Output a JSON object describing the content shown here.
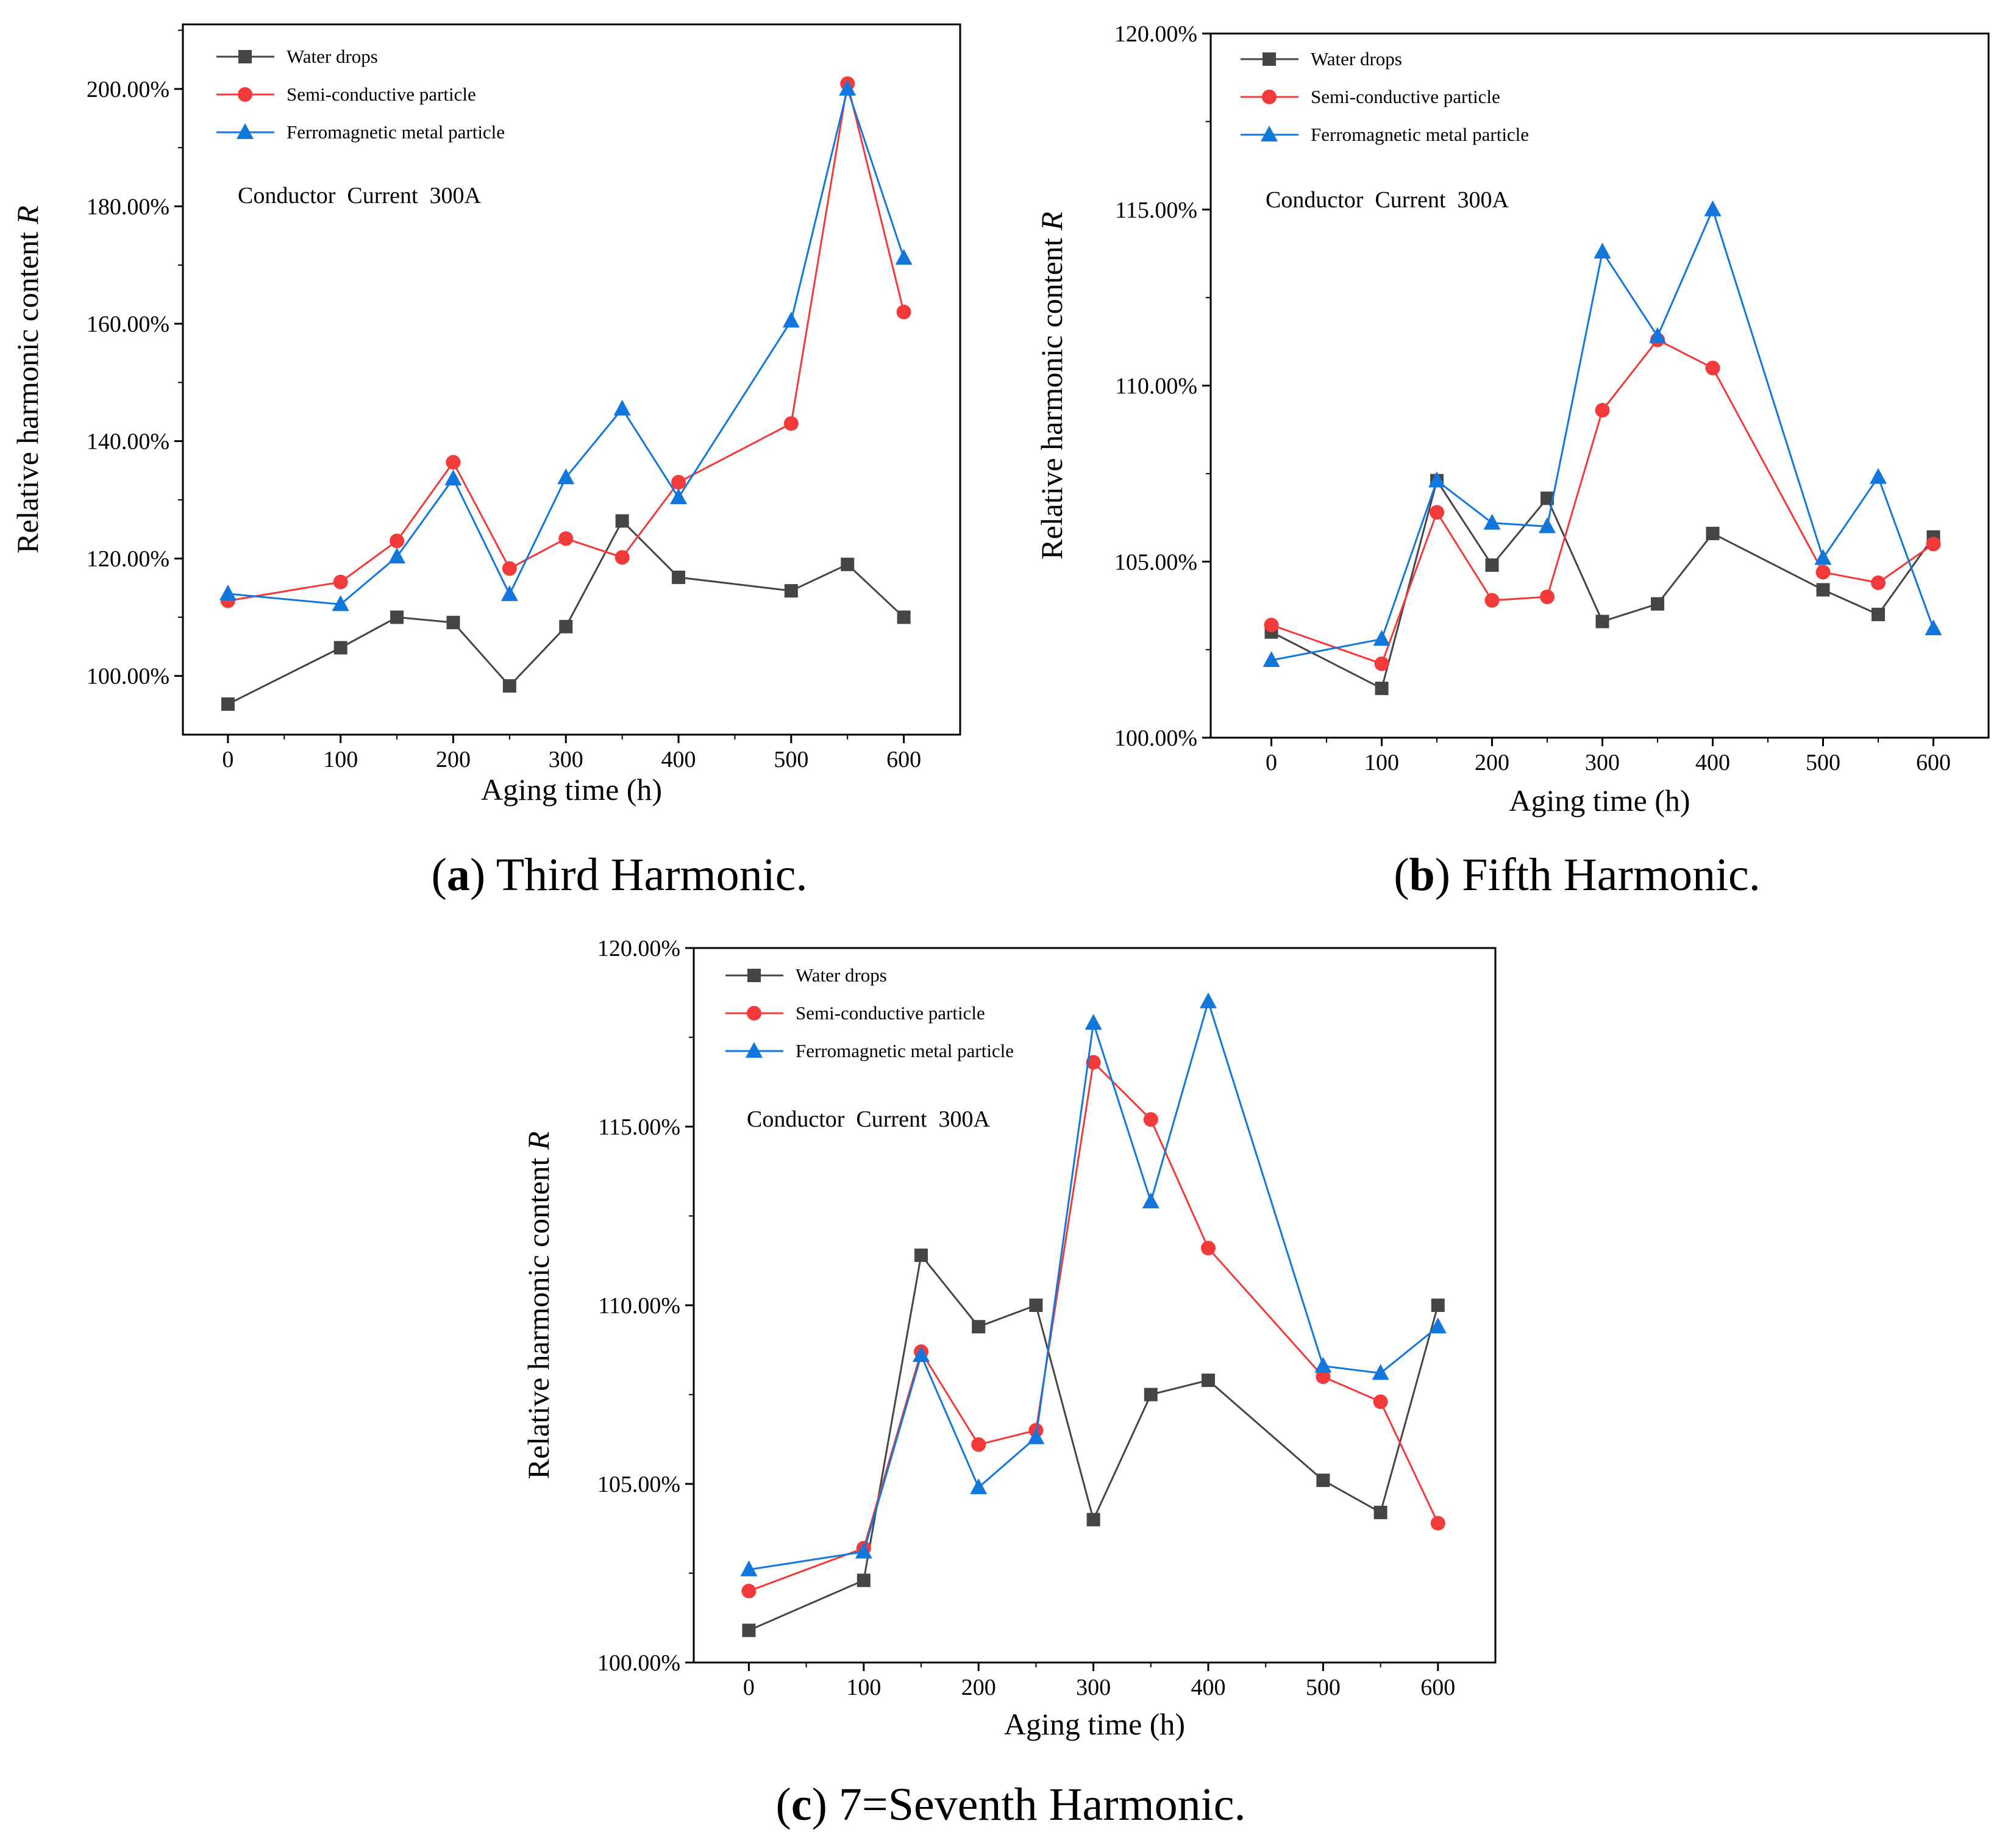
{
  "chart_data": [
    {
      "type": "line",
      "id": "a",
      "caption": {
        "paren_open": "(",
        "letter": "a",
        "paren_close": ")",
        "text": " Third Harmonic."
      },
      "annotation": "Conductor  Current  300A",
      "xlabel": "Aging time (h)",
      "ylabel": "Relative harmonic content ",
      "ylabel_var": "R",
      "xlim": [
        -40,
        650
      ],
      "ylim": [
        90,
        211
      ],
      "xticks": [
        0,
        100,
        200,
        300,
        400,
        500,
        600
      ],
      "yticks": [
        100,
        120,
        140,
        160,
        180,
        200
      ],
      "ytick_labels": [
        "100.00%",
        "120.00%",
        "140.00%",
        "160.00%",
        "180.00%",
        "200.00%"
      ],
      "legend_position": "top-left",
      "x": [
        0,
        100,
        150,
        200,
        250,
        300,
        350,
        400,
        500,
        550,
        600
      ],
      "series": [
        {
          "name": "Water drops",
          "color": "#454545",
          "marker": "square",
          "values": [
            95.2,
            104.8,
            110.0,
            109.1,
            98.3,
            108.4,
            126.4,
            116.8,
            114.5,
            119.0,
            110.0
          ]
        },
        {
          "name": "Semi-conductive particle",
          "color": "#f23a3a",
          "marker": "circle",
          "values": [
            112.8,
            116.0,
            123.0,
            136.4,
            118.3,
            123.4,
            120.2,
            133.0,
            143.0,
            200.9,
            162.0
          ]
        },
        {
          "name": "Ferromagnetic metal particle",
          "color": "#1177dd",
          "marker": "triangle",
          "values": [
            114.0,
            112.2,
            120.3,
            133.6,
            113.9,
            133.8,
            145.5,
            130.4,
            160.5,
            200.0,
            171.2
          ]
        }
      ]
    },
    {
      "type": "line",
      "id": "b",
      "caption": {
        "paren_open": "(",
        "letter": "b",
        "paren_close": ")",
        "text": " Fifth Harmonic."
      },
      "annotation": "Conductor  Current  300A",
      "xlabel": "Aging time (h)",
      "ylabel": "Relative harmonic content ",
      "ylabel_var": "R",
      "xlim": [
        -55,
        650
      ],
      "ylim": [
        100,
        120
      ],
      "xticks": [
        0,
        100,
        200,
        300,
        400,
        500,
        600
      ],
      "yticks": [
        100,
        105,
        110,
        115,
        120
      ],
      "ytick_labels": [
        "100.00%",
        "105.00%",
        "110.00%",
        "115.00%",
        "120.00%"
      ],
      "legend_position": "top-left",
      "x": [
        0,
        100,
        150,
        200,
        250,
        300,
        350,
        400,
        500,
        550,
        600
      ],
      "series": [
        {
          "name": "Water drops",
          "color": "#454545",
          "marker": "square",
          "values": [
            103.0,
            101.4,
            107.3,
            104.9,
            106.8,
            103.3,
            103.8,
            105.8,
            104.2,
            103.5,
            105.7
          ]
        },
        {
          "name": "Semi-conductive particle",
          "color": "#f23a3a",
          "marker": "circle",
          "values": [
            103.2,
            102.1,
            106.4,
            103.9,
            104.0,
            109.3,
            111.3,
            110.5,
            104.7,
            104.4,
            105.5
          ]
        },
        {
          "name": "Ferromagnetic metal particle",
          "color": "#1177dd",
          "marker": "triangle",
          "values": [
            102.2,
            102.8,
            107.3,
            106.1,
            106.0,
            113.8,
            111.4,
            115.0,
            105.1,
            107.4,
            103.1
          ]
        }
      ]
    },
    {
      "type": "line",
      "id": "c",
      "caption": {
        "paren_open": "(",
        "letter": "c",
        "paren_close": ")",
        "text": " 7=Seventh Harmonic."
      },
      "annotation": "Conductor  Current  300A",
      "xlabel": "Aging time (h)",
      "ylabel": "Relative harmonic content ",
      "ylabel_var": "R",
      "xlim": [
        -48,
        650
      ],
      "ylim": [
        100,
        120
      ],
      "xticks": [
        0,
        100,
        200,
        300,
        400,
        500,
        600
      ],
      "yticks": [
        100,
        105,
        110,
        115,
        120
      ],
      "ytick_labels": [
        "100.00%",
        "105.00%",
        "110.00%",
        "115.00%",
        "120.00%"
      ],
      "legend_position": "top-left",
      "x": [
        0,
        100,
        150,
        200,
        250,
        300,
        350,
        400,
        500,
        550,
        600
      ],
      "series": [
        {
          "name": "Water drops",
          "color": "#454545",
          "marker": "square",
          "values": [
            100.9,
            102.3,
            111.4,
            109.4,
            110.0,
            104.0,
            107.5,
            107.9,
            105.1,
            104.2,
            110.0
          ]
        },
        {
          "name": "Semi-conductive particle",
          "color": "#f23a3a",
          "marker": "circle",
          "values": [
            102.0,
            103.2,
            108.7,
            106.1,
            106.5,
            116.8,
            115.2,
            111.6,
            108.0,
            107.3,
            103.9
          ]
        },
        {
          "name": "Ferromagnetic metal particle",
          "color": "#1177dd",
          "marker": "triangle",
          "values": [
            102.6,
            103.1,
            108.6,
            104.9,
            106.3,
            117.9,
            112.9,
            118.5,
            108.3,
            108.1,
            109.4
          ]
        }
      ]
    }
  ]
}
